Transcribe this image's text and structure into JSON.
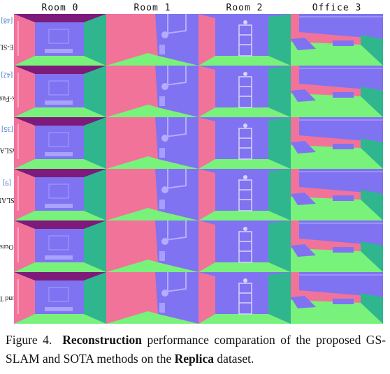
{
  "columns": [
    "Room 0",
    "Room 1",
    "Room 2",
    "Office 3"
  ],
  "rows": [
    {
      "method": "NICE-SLAM",
      "citation": "[48]"
    },
    {
      "method": "Vox-Fusion",
      "citation": "[42]"
    },
    {
      "method": "CoSLAM",
      "citation": "[35]"
    },
    {
      "method": "ESLAM",
      "citation": "[9]"
    },
    {
      "method": "Ours",
      "citation": ""
    },
    {
      "method": "Ground Truth",
      "citation": ""
    }
  ],
  "caption": {
    "label": "Figure 4.",
    "bold1": "Reconstruction",
    "text1": " performance comparation of the proposed GS-SLAM and SOTA methods on the ",
    "bold2": "Replica",
    "text2": " dataset."
  },
  "colors": {
    "normal_purple": "#7f73f2",
    "normal_pink": "#f2739a",
    "normal_green": "#78f27a",
    "normal_teal": "#2fb68f",
    "normal_ceiling": "#7d1a7a"
  }
}
